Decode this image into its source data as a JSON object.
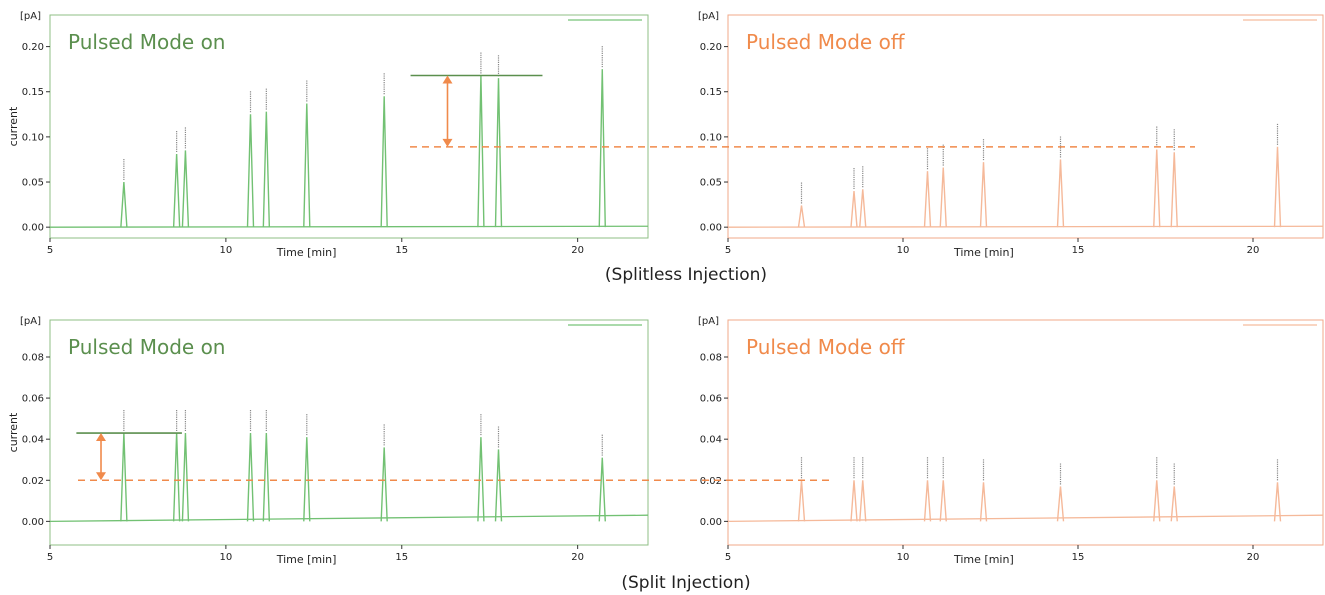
{
  "charts": [
    {
      "id": "top-left",
      "mode_label": "Pulsed Mode on",
      "color": "#5b8f4e",
      "trace_color": "#72c173",
      "frame_color": "#8fbf84",
      "unit_label": "[pA]",
      "ylabel": "current",
      "xlabel": "Time [min]",
      "xlim": [
        5,
        22
      ],
      "ylim": [
        -0.012,
        0.235
      ],
      "yticks": [
        "0.00",
        "0.05",
        "0.10",
        "0.15",
        "0.20"
      ],
      "xticks": [
        "5",
        "10",
        "15",
        "20"
      ],
      "peaks_x": [
        7.1,
        8.6,
        8.85,
        10.7,
        11.15,
        12.3,
        14.5,
        17.25,
        17.75,
        20.7
      ],
      "peaks_y": [
        0.05,
        0.081,
        0.085,
        0.125,
        0.128,
        0.137,
        0.145,
        0.168,
        0.165,
        0.175
      ],
      "ref_line_y": 0.168,
      "dashed_line_y": 0.089,
      "arrow": {
        "x": 16.3,
        "from": 0.168,
        "to": 0.089
      }
    },
    {
      "id": "top-right",
      "mode_label": "Pulsed Mode off",
      "color": "#f08a4b",
      "trace_color": "#f5b99a",
      "frame_color": "#f2a889",
      "unit_label": "[pA]",
      "ylabel": "",
      "xlabel": "Time [min]",
      "xlim": [
        5,
        22
      ],
      "ylim": [
        -0.012,
        0.235
      ],
      "yticks": [
        "0.00",
        "0.05",
        "0.10",
        "0.15",
        "0.20"
      ],
      "xticks": [
        "5",
        "10",
        "15",
        "20"
      ],
      "peaks_x": [
        7.1,
        8.6,
        8.85,
        10.7,
        11.15,
        12.3,
        14.5,
        17.25,
        17.75,
        20.7
      ],
      "peaks_y": [
        0.024,
        0.04,
        0.042,
        0.062,
        0.066,
        0.072,
        0.075,
        0.086,
        0.083,
        0.089
      ]
    },
    {
      "id": "bottom-left",
      "mode_label": "Pulsed Mode on",
      "color": "#5b8f4e",
      "trace_color": "#72c173",
      "frame_color": "#8fbf84",
      "unit_label": "[pA]",
      "ylabel": "current",
      "xlabel": "Time [min]",
      "xlim": [
        5,
        22
      ],
      "ylim": [
        -0.0115,
        0.098
      ],
      "yticks": [
        "0.00",
        "0.02",
        "0.04",
        "0.06",
        "0.08"
      ],
      "xticks": [
        "5",
        "10",
        "15",
        "20"
      ],
      "peaks_x": [
        7.1,
        8.6,
        8.85,
        10.7,
        11.15,
        12.3,
        14.5,
        17.25,
        17.75,
        20.7
      ],
      "peaks_y": [
        0.043,
        0.043,
        0.043,
        0.043,
        0.043,
        0.041,
        0.036,
        0.041,
        0.035,
        0.031
      ],
      "ref_line_y": 0.043,
      "dashed_line_y": 0.02,
      "arrow": {
        "x": 6.45,
        "from": 0.043,
        "to": 0.02
      }
    },
    {
      "id": "bottom-right",
      "mode_label": "Pulsed Mode off",
      "color": "#f08a4b",
      "trace_color": "#f5b99a",
      "frame_color": "#f2a889",
      "unit_label": "[pA]",
      "ylabel": "",
      "xlabel": "Time [min]",
      "xlim": [
        5,
        22
      ],
      "ylim": [
        -0.0115,
        0.098
      ],
      "yticks": [
        "0.00",
        "0.02",
        "0.04",
        "0.06",
        "0.08"
      ],
      "xticks": [
        "5",
        "10",
        "15",
        "20"
      ],
      "peaks_x": [
        7.1,
        8.6,
        8.85,
        10.7,
        11.15,
        12.3,
        14.5,
        17.25,
        17.75,
        20.7
      ],
      "peaks_y": [
        0.02,
        0.02,
        0.02,
        0.02,
        0.02,
        0.019,
        0.017,
        0.02,
        0.017,
        0.019
      ],
      "dashed_line_y": 0.02
    }
  ],
  "captions": {
    "top": "(Splitless Injection)",
    "bottom": "(Split Injection)"
  },
  "colors": {
    "arrow": "#f08a4b",
    "dashed": "#f08a4b",
    "ref_line": "#5b8f4e",
    "text": "#222222",
    "tick": "#333333"
  },
  "chart_data": [
    {
      "type": "line",
      "title": "Pulsed Mode on",
      "xlabel": "Time [min]",
      "ylabel": "current",
      "y_unit": "[pA]",
      "xlim": [
        5,
        22
      ],
      "ylim": [
        -0.012,
        0.235
      ],
      "series": [
        {
          "x": [
            7.1,
            8.6,
            8.85,
            10.7,
            11.15,
            12.3,
            14.5,
            17.25,
            17.75,
            20.7
          ],
          "values": [
            0.05,
            0.081,
            0.085,
            0.125,
            0.128,
            0.137,
            0.145,
            0.168,
            0.165,
            0.175
          ]
        }
      ]
    },
    {
      "type": "line",
      "title": "Pulsed Mode off",
      "xlabel": "Time [min]",
      "y_unit": "[pA]",
      "xlim": [
        5,
        22
      ],
      "ylim": [
        -0.012,
        0.235
      ],
      "series": [
        {
          "x": [
            7.1,
            8.6,
            8.85,
            10.7,
            11.15,
            12.3,
            14.5,
            17.25,
            17.75,
            20.7
          ],
          "values": [
            0.024,
            0.04,
            0.042,
            0.062,
            0.066,
            0.072,
            0.075,
            0.086,
            0.083,
            0.089
          ]
        }
      ]
    },
    {
      "type": "line",
      "title": "Pulsed Mode on",
      "xlabel": "Time [min]",
      "ylabel": "current",
      "y_unit": "[pA]",
      "xlim": [
        5,
        22
      ],
      "ylim": [
        -0.0115,
        0.098
      ],
      "series": [
        {
          "x": [
            7.1,
            8.6,
            8.85,
            10.7,
            11.15,
            12.3,
            14.5,
            17.25,
            17.75,
            20.7
          ],
          "values": [
            0.043,
            0.043,
            0.043,
            0.043,
            0.043,
            0.041,
            0.036,
            0.041,
            0.035,
            0.031
          ]
        }
      ]
    },
    {
      "type": "line",
      "title": "Pulsed Mode off",
      "xlabel": "Time [min]",
      "y_unit": "[pA]",
      "xlim": [
        5,
        22
      ],
      "ylim": [
        -0.0115,
        0.098
      ],
      "series": [
        {
          "x": [
            7.1,
            8.6,
            8.85,
            10.7,
            11.15,
            12.3,
            14.5,
            17.25,
            17.75,
            20.7
          ],
          "values": [
            0.02,
            0.02,
            0.02,
            0.02,
            0.02,
            0.019,
            0.017,
            0.02,
            0.017,
            0.019
          ]
        }
      ]
    }
  ]
}
